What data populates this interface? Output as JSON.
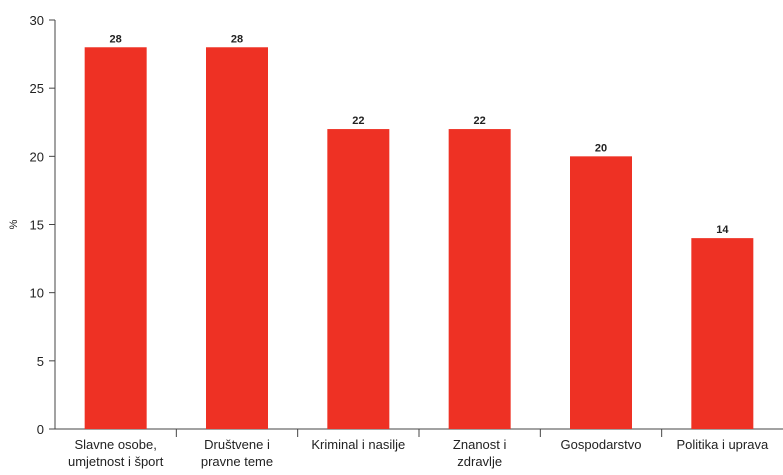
{
  "chart_data": {
    "type": "bar",
    "categories": [
      [
        "Slavne osobe,",
        "umjetnost i šport"
      ],
      [
        "Društvene i",
        "pravne teme"
      ],
      [
        "Kriminal i nasilje"
      ],
      [
        "Znanost i",
        "zdravlje"
      ],
      [
        "Gospodarstvo"
      ],
      [
        "Politika i uprava"
      ]
    ],
    "values": [
      28,
      28,
      22,
      22,
      20,
      14
    ],
    "ylabel": "%",
    "ylim": [
      0,
      30
    ],
    "yticks": [
      0,
      5,
      10,
      15,
      20,
      25,
      30
    ],
    "grid": false,
    "bar_color": "#ee3124",
    "data_labels": true
  }
}
